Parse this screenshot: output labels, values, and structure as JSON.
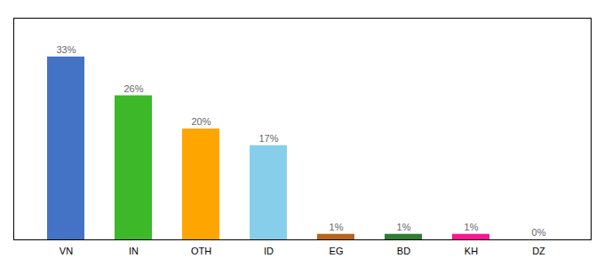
{
  "chart_data": {
    "type": "bar",
    "categories": [
      "VN",
      "IN",
      "OTH",
      "ID",
      "EG",
      "BD",
      "KH",
      "DZ"
    ],
    "values": [
      33,
      26,
      20,
      17,
      1,
      1,
      1,
      0
    ],
    "value_labels": [
      "33%",
      "26%",
      "20%",
      "17%",
      "1%",
      "1%",
      "1%",
      "0%"
    ],
    "colors": [
      "#4472C4",
      "#3CB828",
      "#FFA500",
      "#87CEEB",
      "#B8651A",
      "#2E7D32",
      "#FF1493",
      "#cccccc"
    ],
    "ylim": [
      0,
      40
    ],
    "data_labels": true,
    "tick_labels": "x"
  }
}
